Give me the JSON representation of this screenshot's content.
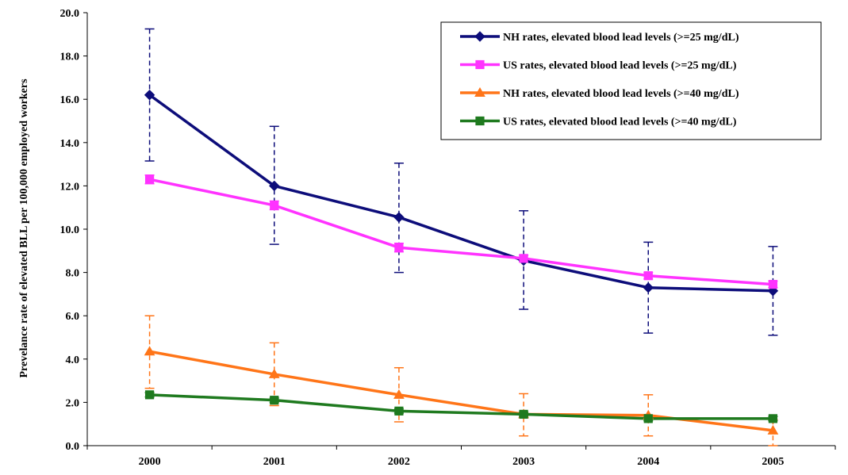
{
  "chart_data": {
    "type": "line",
    "title": "",
    "xlabel": "",
    "ylabel": "Prevelance rate of elevated BLL per 100,000 employed workers",
    "categories": [
      "2000",
      "2001",
      "2002",
      "2003",
      "2004",
      "2005"
    ],
    "ylim": [
      0,
      20
    ],
    "yticks": [
      "0.0",
      "2.0",
      "4.0",
      "6.0",
      "8.0",
      "10.0",
      "12.0",
      "14.0",
      "16.0",
      "18.0",
      "20.0"
    ],
    "grid": false,
    "legend_position": "top-right",
    "series": [
      {
        "name": "NH rates, elevated blood lead levels (>=25 mg/dL)",
        "color": "#0d0d7a",
        "marker": "diamond",
        "values": [
          16.2,
          12.0,
          10.55,
          8.55,
          7.3,
          7.15
        ],
        "error_low": [
          13.15,
          9.3,
          8.0,
          6.3,
          5.2,
          5.1
        ],
        "error_high": [
          19.25,
          14.75,
          13.05,
          10.85,
          9.4,
          9.2
        ],
        "error_color": "#0d0d7a",
        "error_dashed": true
      },
      {
        "name": "US rates, elevated blood lead levels (>=25 mg/dL)",
        "color": "#ff33ff",
        "marker": "square",
        "values": [
          12.3,
          11.1,
          9.15,
          8.65,
          7.85,
          7.45
        ],
        "error_low": [
          12.1,
          10.9,
          8.95,
          8.5,
          7.7,
          7.3
        ],
        "error_high": [
          12.5,
          11.3,
          9.35,
          8.8,
          8.0,
          7.6
        ],
        "error_color": "#ff33ff",
        "error_dashed": false
      },
      {
        "name": "NH rates, elevated blood lead levels (>=40 mg/dL)",
        "color": "#ff7518",
        "marker": "triangle",
        "values": [
          4.35,
          3.3,
          2.35,
          1.45,
          1.4,
          0.7
        ],
        "error_low": [
          2.65,
          1.85,
          1.1,
          0.45,
          0.45,
          0.0
        ],
        "error_high": [
          6.0,
          4.75,
          3.6,
          2.4,
          2.35,
          1.2
        ],
        "error_color": "#ff7518",
        "error_dashed": true
      },
      {
        "name": "US rates, elevated blood lead levels (>=40 mg/dL)",
        "color": "#1f7a1f",
        "marker": "square",
        "values": [
          2.35,
          2.1,
          1.6,
          1.45,
          1.25,
          1.25
        ],
        "error_low": [
          2.25,
          2.0,
          1.5,
          1.35,
          1.15,
          1.15
        ],
        "error_high": [
          2.45,
          2.2,
          1.7,
          1.55,
          1.35,
          1.35
        ],
        "error_color": "#1f7a1f",
        "error_dashed": false
      }
    ]
  }
}
